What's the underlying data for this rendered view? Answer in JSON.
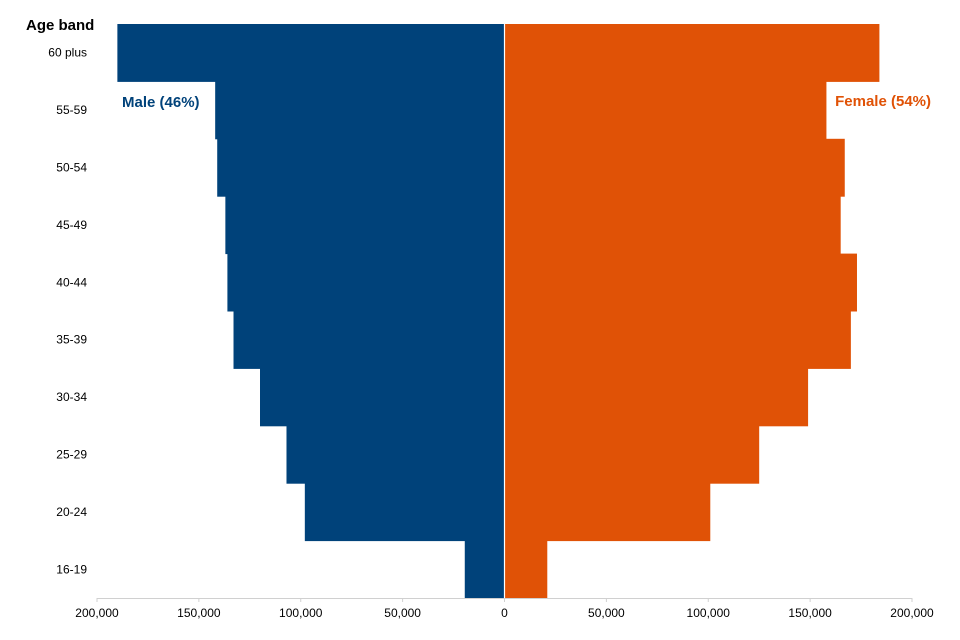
{
  "chart_data": {
    "type": "bar",
    "orientation": "horizontal",
    "layout": "population-pyramid",
    "ylabel": "Age band",
    "categories": [
      "60 plus",
      "55-59",
      "50-54",
      "45-49",
      "40-44",
      "35-39",
      "30-34",
      "25-29",
      "20-24",
      "16-19"
    ],
    "series": [
      {
        "name": "Male (46%)",
        "color": "#00427a",
        "side": "left",
        "values": [
          190000,
          142000,
          141000,
          137000,
          136000,
          133000,
          120000,
          107000,
          98000,
          19500
        ]
      },
      {
        "name": "Female (54%)",
        "color": "#e05206",
        "side": "right",
        "values": [
          184000,
          158000,
          167000,
          165000,
          173000,
          170000,
          149000,
          125000,
          101000,
          21000
        ]
      }
    ],
    "xlim": [
      -200000,
      200000
    ],
    "xticks": [
      -200000,
      -150000,
      -100000,
      -50000,
      0,
      50000,
      100000,
      150000,
      200000
    ],
    "xtick_labels": [
      "200,000",
      "150,000",
      "100,000",
      "50,000",
      "0",
      "50,000",
      "100,000",
      "150,000",
      "200,000"
    ],
    "grid": false,
    "legend": "inline labels at top-left and top-right"
  }
}
